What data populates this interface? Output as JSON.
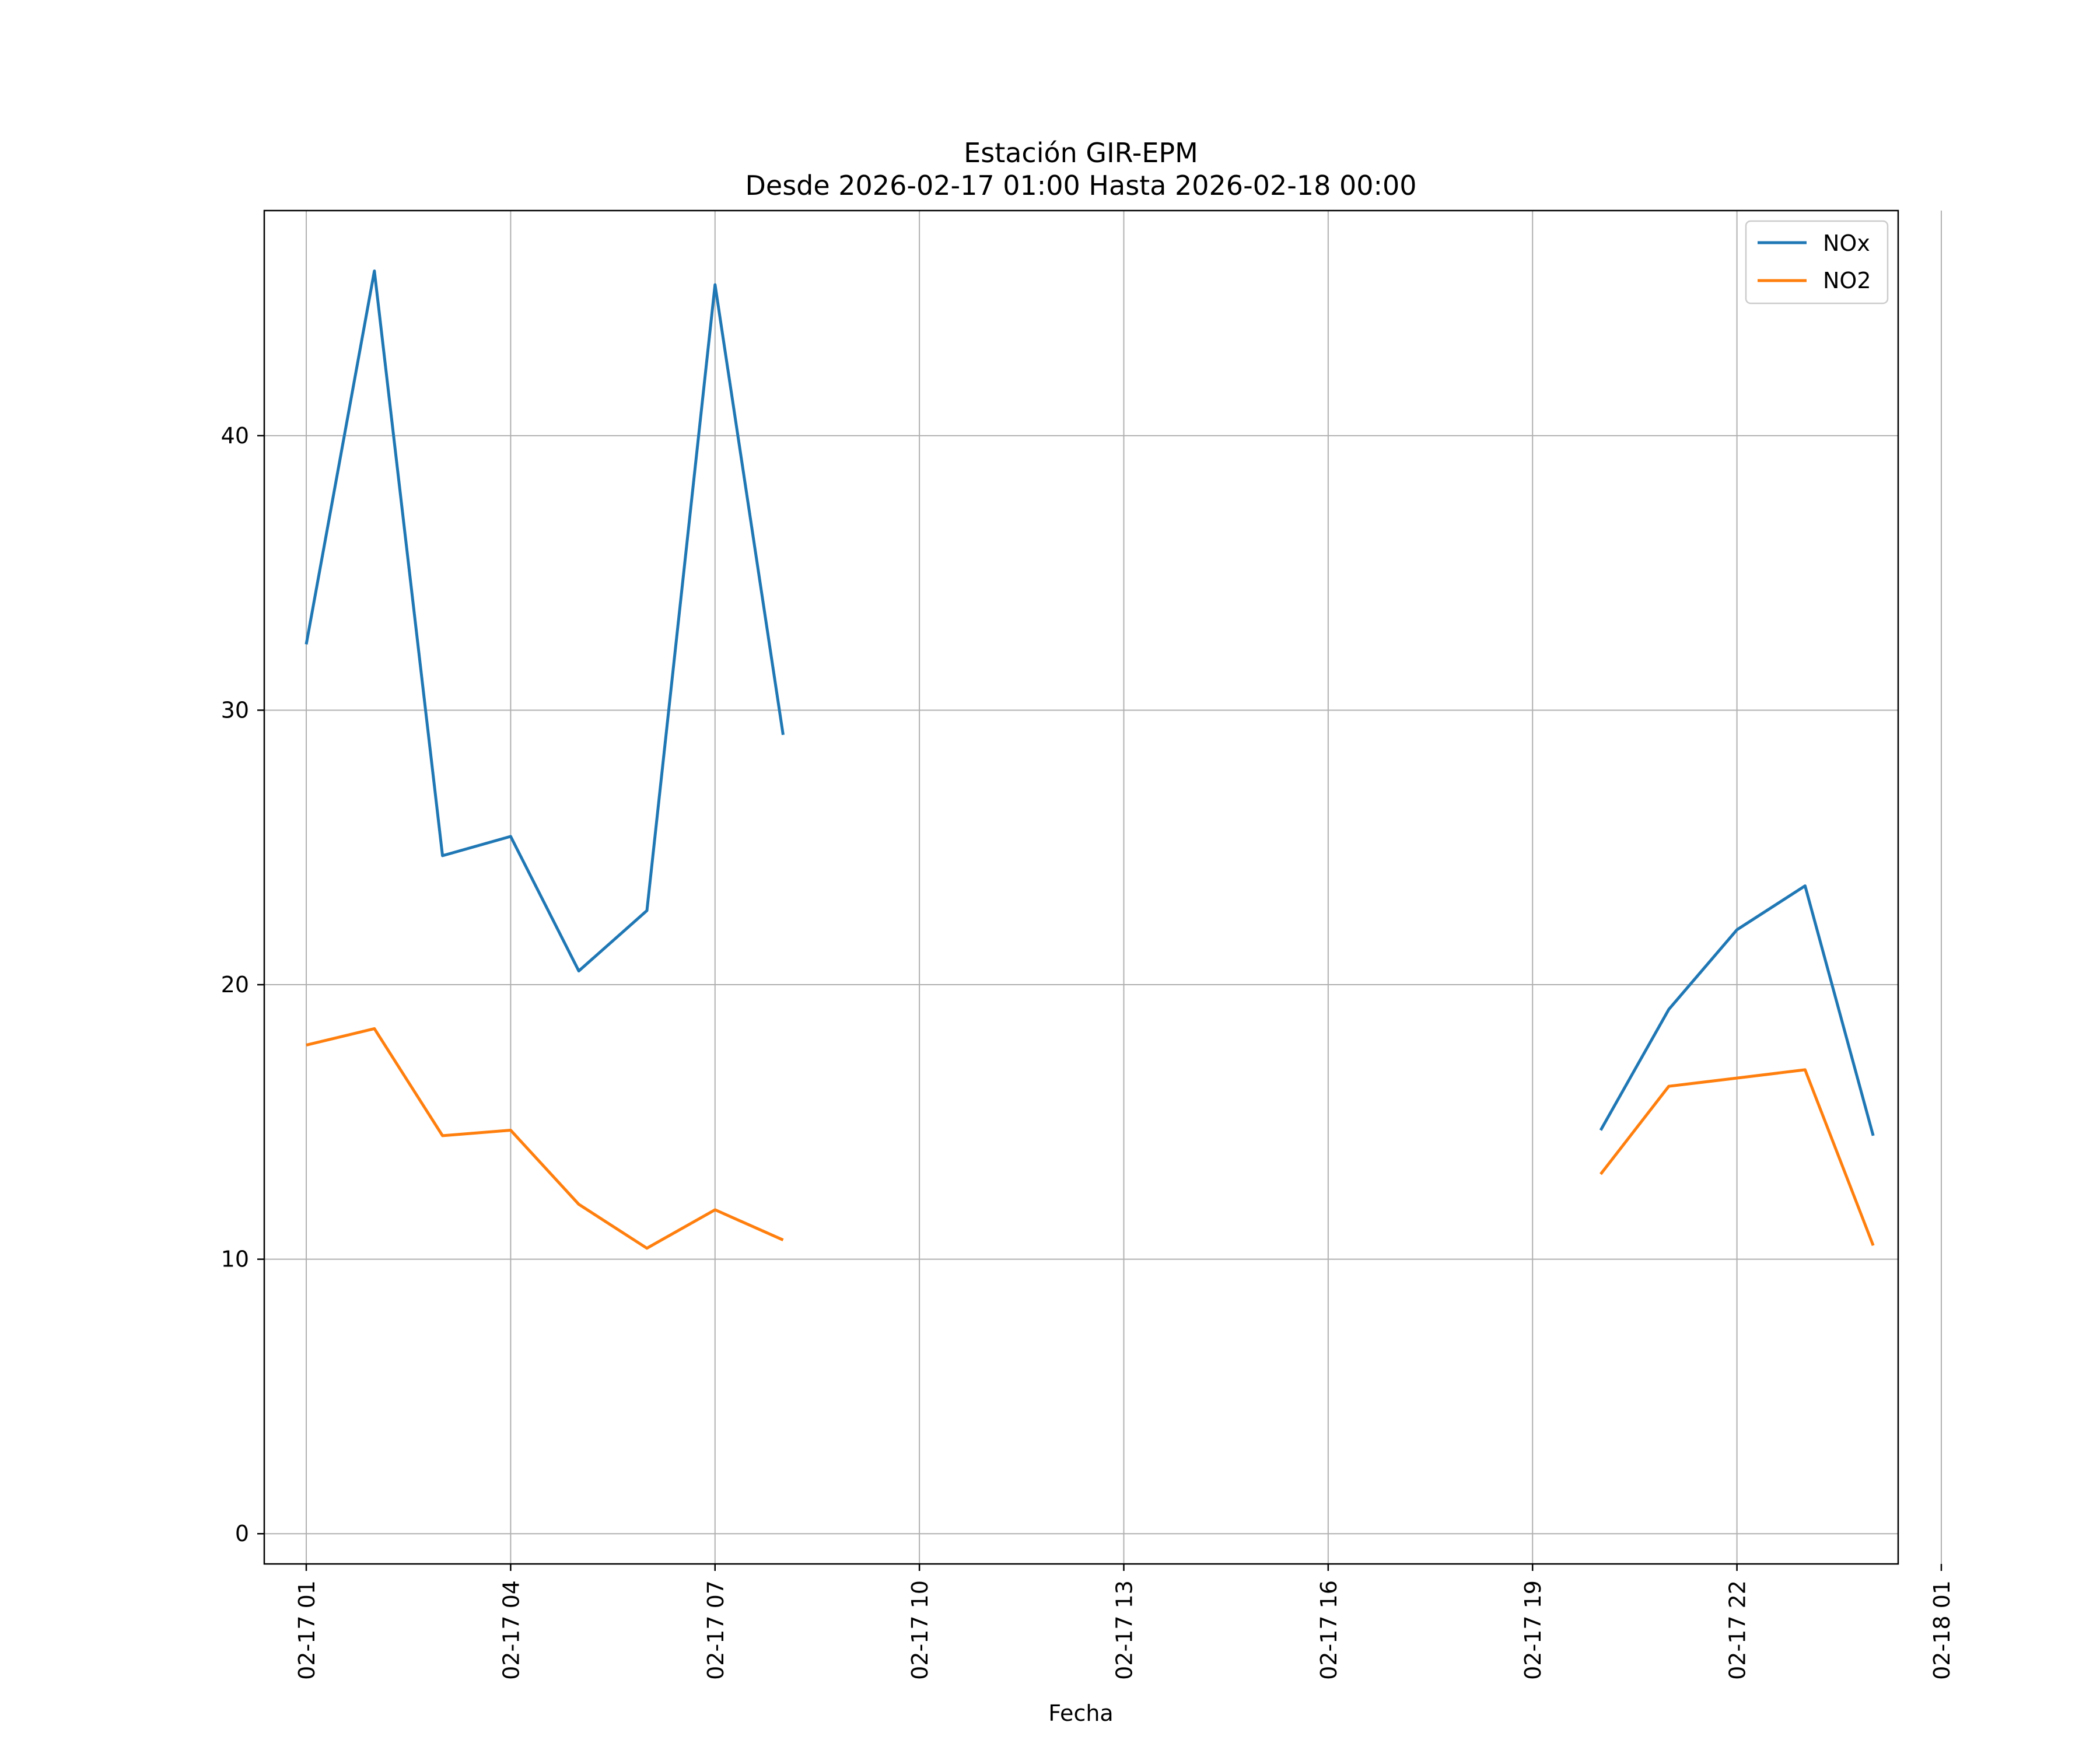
{
  "chart_data": {
    "type": "line",
    "title_line1": "Estación GIR-EPM",
    "title_line2": "Desde 2026-02-17 01:00 Hasta 2026-02-18 00:00",
    "xlabel": "Fecha",
    "ylabel": "",
    "x_range": [
      "2026-02-17 00:23",
      "2026-02-18 00:22"
    ],
    "ylim": [
      -1.1,
      48.2
    ],
    "grid": true,
    "legend_position": "top-right",
    "x_ticks": [
      {
        "value": "2026-02-17 01:00",
        "label": "02-17 01"
      },
      {
        "value": "2026-02-17 04:00",
        "label": "02-17 04"
      },
      {
        "value": "2026-02-17 07:00",
        "label": "02-17 07"
      },
      {
        "value": "2026-02-17 10:00",
        "label": "02-17 10"
      },
      {
        "value": "2026-02-17 13:00",
        "label": "02-17 13"
      },
      {
        "value": "2026-02-17 16:00",
        "label": "02-17 16"
      },
      {
        "value": "2026-02-17 19:00",
        "label": "02-17 19"
      },
      {
        "value": "2026-02-17 22:00",
        "label": "02-17 22"
      },
      {
        "value": "2026-02-18 01:00",
        "label": "02-18 01"
      }
    ],
    "y_ticks": [
      {
        "value": 0,
        "label": "0"
      },
      {
        "value": 10,
        "label": "10"
      },
      {
        "value": 20,
        "label": "20"
      },
      {
        "value": 30,
        "label": "30"
      },
      {
        "value": 40,
        "label": "40"
      }
    ],
    "x": [
      "2026-02-17 01:00",
      "2026-02-17 02:00",
      "2026-02-17 03:00",
      "2026-02-17 04:00",
      "2026-02-17 05:00",
      "2026-02-17 06:00",
      "2026-02-17 07:00",
      "2026-02-17 08:00",
      "2026-02-17 09:00",
      "2026-02-17 10:00",
      "2026-02-17 11:00",
      "2026-02-17 12:00",
      "2026-02-17 13:00",
      "2026-02-17 14:00",
      "2026-02-17 15:00",
      "2026-02-17 16:00",
      "2026-02-17 17:00",
      "2026-02-17 18:00",
      "2026-02-17 19:00",
      "2026-02-17 20:00",
      "2026-02-17 21:00",
      "2026-02-17 22:00",
      "2026-02-17 23:00",
      "2026-02-18 00:00"
    ],
    "series": [
      {
        "name": "NOx",
        "color": "#1f77b4",
        "values": [
          32.4,
          46.0,
          24.7,
          25.4,
          20.5,
          22.7,
          45.5,
          29.1,
          null,
          null,
          null,
          null,
          null,
          null,
          null,
          null,
          null,
          null,
          null,
          14.7,
          19.1,
          22.0,
          23.6,
          14.5
        ]
      },
      {
        "name": "NO2",
        "color": "#ff7f0e",
        "values": [
          17.8,
          18.4,
          14.5,
          14.7,
          12.0,
          10.4,
          11.8,
          10.7,
          null,
          null,
          null,
          null,
          null,
          null,
          null,
          null,
          null,
          null,
          null,
          13.1,
          16.3,
          16.6,
          16.9,
          10.5
        ]
      }
    ]
  }
}
